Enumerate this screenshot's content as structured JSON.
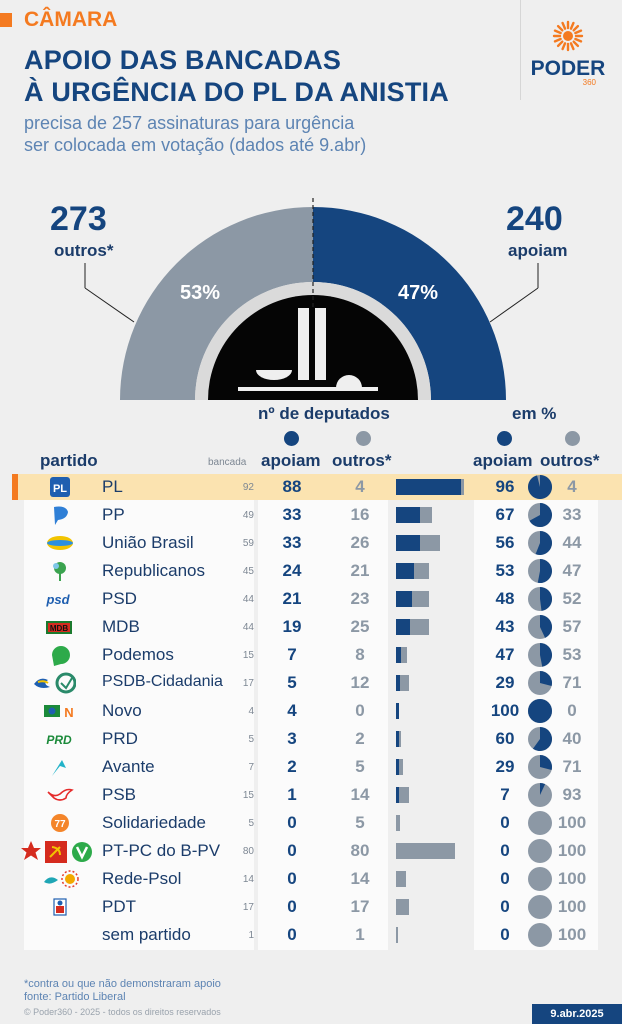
{
  "header": {
    "kicker": "CÂMARA",
    "title_line1": "APOIO DAS BANCADAS",
    "title_line2": "À URGÊNCIA DO PL DA ANISTIA",
    "subtitle_line1": "precisa de 257 assinaturas para urgência",
    "subtitle_line2": "ser colocada em votação (dados até 9.abr)",
    "logo_text": "PODER",
    "logo_number": "360"
  },
  "hemicycle": {
    "others_total": "273",
    "others_label": "outros*",
    "others_pct": "53%",
    "support_total": "240",
    "support_label": "apoiam",
    "support_pct": "47%"
  },
  "table_headers": {
    "group_deputies": "nº de deputados",
    "group_percent": "em %",
    "party": "partido",
    "bancada": "bancada",
    "support": "apoiam",
    "others": "outros*",
    "support_pct": "apoiam",
    "others_pct": "outros*"
  },
  "colors": {
    "support": "#15457f",
    "others": "#8c98a5",
    "accent": "#f47a20",
    "highlight_row": "#fbe3b0"
  },
  "chart_data": {
    "type": "table",
    "columns": [
      "partido",
      "bancada",
      "apoiam",
      "outros*",
      "apoiam %",
      "outros* %"
    ],
    "rows": [
      {
        "party": "PL",
        "bancada": 92,
        "support": 88,
        "others": 4,
        "support_pct": 96,
        "others_pct": 4,
        "highlight": true,
        "icon": "pl-logo-icon"
      },
      {
        "party": "PP",
        "bancada": 49,
        "support": 33,
        "others": 16,
        "support_pct": 67,
        "others_pct": 33,
        "icon": "pp-logo-icon"
      },
      {
        "party": "União Brasil",
        "bancada": 59,
        "support": 33,
        "others": 26,
        "support_pct": 56,
        "others_pct": 44,
        "icon": "uniao-brasil-logo-icon"
      },
      {
        "party": "Republicanos",
        "bancada": 45,
        "support": 24,
        "others": 21,
        "support_pct": 53,
        "others_pct": 47,
        "icon": "republicanos-logo-icon"
      },
      {
        "party": "PSD",
        "bancada": 44,
        "support": 21,
        "others": 23,
        "support_pct": 48,
        "others_pct": 52,
        "icon": "psd-logo-icon"
      },
      {
        "party": "MDB",
        "bancada": 44,
        "support": 19,
        "others": 25,
        "support_pct": 43,
        "others_pct": 57,
        "icon": "mdb-logo-icon"
      },
      {
        "party": "Podemos",
        "bancada": 15,
        "support": 7,
        "others": 8,
        "support_pct": 47,
        "others_pct": 53,
        "icon": "podemos-logo-icon"
      },
      {
        "party": "PSDB-Cidadania",
        "bancada": 17,
        "support": 5,
        "others": 12,
        "support_pct": 29,
        "others_pct": 71,
        "icon": "psdb-cidadania-logo-icon"
      },
      {
        "party": "Novo",
        "bancada": 4,
        "support": 4,
        "others": 0,
        "support_pct": 100,
        "others_pct": 0,
        "icon": "novo-logo-icon"
      },
      {
        "party": "PRD",
        "bancada": 5,
        "support": 3,
        "others": 2,
        "support_pct": 60,
        "others_pct": 40,
        "icon": "prd-logo-icon"
      },
      {
        "party": "Avante",
        "bancada": 7,
        "support": 2,
        "others": 5,
        "support_pct": 29,
        "others_pct": 71,
        "icon": "avante-logo-icon"
      },
      {
        "party": "PSB",
        "bancada": 15,
        "support": 1,
        "others": 14,
        "support_pct": 7,
        "others_pct": 93,
        "icon": "psb-logo-icon"
      },
      {
        "party": "Solidariedade",
        "bancada": 5,
        "support": 0,
        "others": 5,
        "support_pct": 0,
        "others_pct": 100,
        "icon": "solidariedade-logo-icon"
      },
      {
        "party": "PT-PC do B-PV",
        "bancada": 80,
        "support": 0,
        "others": 80,
        "support_pct": 0,
        "others_pct": 100,
        "icon": "pt-pcdob-pv-logo-icon"
      },
      {
        "party": "Rede-Psol",
        "bancada": 14,
        "support": 0,
        "others": 14,
        "support_pct": 0,
        "others_pct": 100,
        "icon": "rede-psol-logo-icon"
      },
      {
        "party": "PDT",
        "bancada": 17,
        "support": 0,
        "others": 17,
        "support_pct": 0,
        "others_pct": 100,
        "icon": "pdt-logo-icon"
      },
      {
        "party": "sem partido",
        "bancada": 1,
        "support": 0,
        "others": 1,
        "support_pct": 0,
        "others_pct": 100,
        "icon": ""
      }
    ]
  },
  "footer": {
    "note": "*contra ou que não demonstraram apoio",
    "source": "fonte: Partido Liberal",
    "copyright": "© Poder360 - 2025 - todos os direitos reservados",
    "date": "9.abr.2025"
  }
}
